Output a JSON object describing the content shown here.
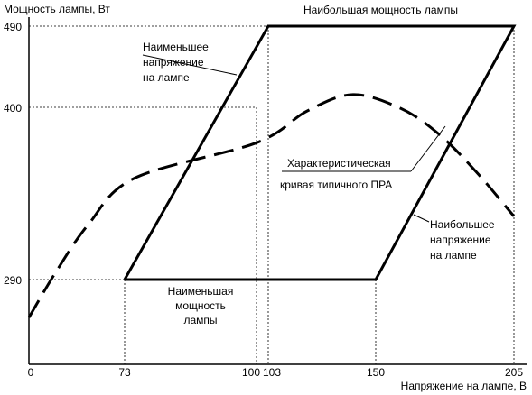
{
  "chart_data": {
    "type": "line",
    "title": "",
    "xlabel": "Напряжение на лампе, В",
    "ylabel": "Мощность лампы, Вт",
    "xlim": [
      0,
      205
    ],
    "ylim": [
      220,
      500
    ],
    "x_ticks": [
      "0",
      "73",
      "100",
      "103",
      "150",
      "205"
    ],
    "y_ticks": [
      "290",
      "400",
      "490"
    ],
    "grid": false,
    "boundary": {
      "points": [
        {
          "x": 73,
          "y": 290
        },
        {
          "x": 103,
          "y": 490
        },
        {
          "x": 205,
          "y": 490
        },
        {
          "x": 150,
          "y": 290
        },
        {
          "x": 73,
          "y": 290
        }
      ]
    },
    "curve": {
      "points": [
        {
          "x": 0,
          "y": 260
        },
        {
          "x": 20,
          "y": 295
        },
        {
          "x": 45,
          "y": 333
        },
        {
          "x": 75,
          "y": 370
        },
        {
          "x": 100,
          "y": 398
        },
        {
          "x": 120,
          "y": 423
        },
        {
          "x": 140,
          "y": 436
        },
        {
          "x": 160,
          "y": 425
        },
        {
          "x": 175,
          "y": 405
        },
        {
          "x": 190,
          "y": 375
        },
        {
          "x": 205,
          "y": 340
        }
      ]
    },
    "annotations": {
      "max_power": "Наибольшая мощность лампы",
      "min_voltage": [
        "Наименьшее",
        "напряжение",
        "на лампе"
      ],
      "curve_label": [
        "Характеристическая",
        "кривая типичного ПРА"
      ],
      "max_voltage": [
        "Наибольшее",
        "напряжение",
        "на лампе"
      ],
      "min_power": [
        "Наименьшая",
        "мощность",
        "лампы"
      ]
    }
  }
}
